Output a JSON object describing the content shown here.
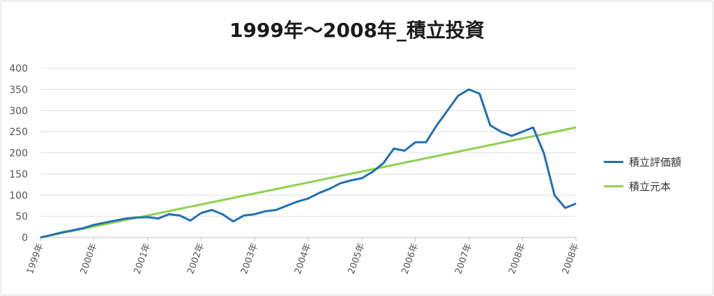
{
  "chart_data": {
    "type": "line",
    "title": "1999年～2008年_積立投資",
    "xlabel": "",
    "ylabel": "",
    "ylim": [
      0,
      400
    ],
    "yticks": [
      0,
      50,
      100,
      150,
      200,
      250,
      300,
      350,
      400
    ],
    "x_tick_labels": [
      "1999年",
      "2000年",
      "2001年",
      "2002年",
      "2003年",
      "2004年",
      "2005年",
      "2006年",
      "2007年",
      "2008年",
      "2008年"
    ],
    "grid": true,
    "legend_position": "right",
    "series": [
      {
        "name": "積立評価額",
        "color": "#1f6fb5",
        "x": [
          0,
          0.2,
          0.4,
          0.6,
          0.8,
          1.0,
          1.2,
          1.4,
          1.6,
          1.8,
          2.0,
          2.2,
          2.4,
          2.6,
          2.8,
          3.0,
          3.2,
          3.4,
          3.6,
          3.8,
          4.0,
          4.2,
          4.4,
          4.6,
          4.8,
          5.0,
          5.2,
          5.4,
          5.6,
          5.8,
          6.0,
          6.2,
          6.4,
          6.6,
          6.8,
          7.0,
          7.2,
          7.4,
          7.6,
          7.8,
          8.0,
          8.2,
          8.4,
          8.6,
          8.8,
          9.0,
          9.2,
          9.4,
          9.6,
          9.8,
          10.0
        ],
        "y": [
          0,
          6,
          12,
          17,
          22,
          30,
          35,
          40,
          45,
          47,
          48,
          45,
          55,
          52,
          40,
          58,
          65,
          55,
          38,
          52,
          55,
          62,
          65,
          75,
          85,
          92,
          105,
          115,
          128,
          135,
          140,
          155,
          175,
          210,
          205,
          225,
          225,
          265,
          300,
          335,
          350,
          340,
          265,
          250,
          240,
          250,
          260,
          200,
          100,
          70,
          80
        ]
      },
      {
        "name": "積立元本",
        "color": "#8fd14f",
        "x": [
          0,
          10.0
        ],
        "y": [
          0,
          260
        ]
      }
    ]
  }
}
